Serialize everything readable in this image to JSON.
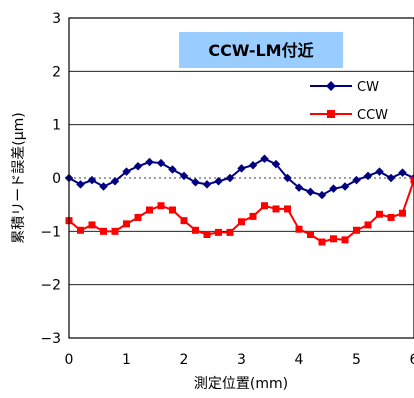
{
  "chart_data": {
    "type": "line",
    "title": "CCW-LM付近",
    "xlabel": "測定位置(mm)",
    "ylabel": "累積リード誤差(μm)",
    "xlim": [
      0,
      6
    ],
    "ylim": [
      -3,
      3
    ],
    "x_ticks": [
      "0",
      "1",
      "2",
      "3",
      "4",
      "5",
      "6"
    ],
    "y_ticks": [
      "3",
      "2",
      "1",
      "0",
      "−1",
      "−2",
      "−3"
    ],
    "grid": "horizontal",
    "legend_position": "right",
    "title_box_color": "#99ccff",
    "x": [
      0,
      0.2,
      0.4,
      0.6,
      0.8,
      1.0,
      1.2,
      1.4,
      1.6,
      1.8,
      2.0,
      2.2,
      2.4,
      2.6,
      2.8,
      3.0,
      3.2,
      3.4,
      3.6,
      3.8,
      4.0,
      4.2,
      4.4,
      4.6,
      4.8,
      5.0,
      5.2,
      5.4,
      5.6,
      5.8,
      6.0
    ],
    "series": [
      {
        "name": "CW",
        "color": "#000080",
        "marker": "diamond",
        "values": [
          0.0,
          -0.12,
          -0.04,
          -0.16,
          -0.06,
          0.12,
          0.22,
          0.3,
          0.28,
          0.16,
          0.04,
          -0.08,
          -0.12,
          -0.06,
          0.0,
          0.18,
          0.24,
          0.36,
          0.26,
          0.0,
          -0.18,
          -0.26,
          -0.32,
          -0.2,
          -0.16,
          -0.04,
          0.04,
          0.12,
          0.0,
          0.1,
          0.0
        ]
      },
      {
        "name": "CCW",
        "color": "#ff0000",
        "marker": "square",
        "values": [
          -0.8,
          -0.98,
          -0.88,
          -1.0,
          -1.0,
          -0.86,
          -0.74,
          -0.6,
          -0.52,
          -0.6,
          -0.8,
          -0.98,
          -1.06,
          -1.02,
          -1.02,
          -0.82,
          -0.72,
          -0.52,
          -0.58,
          -0.58,
          -0.96,
          -1.06,
          -1.2,
          -1.14,
          -1.16,
          -0.98,
          -0.88,
          -0.68,
          -0.74,
          -0.66,
          -0.04
        ]
      }
    ]
  }
}
